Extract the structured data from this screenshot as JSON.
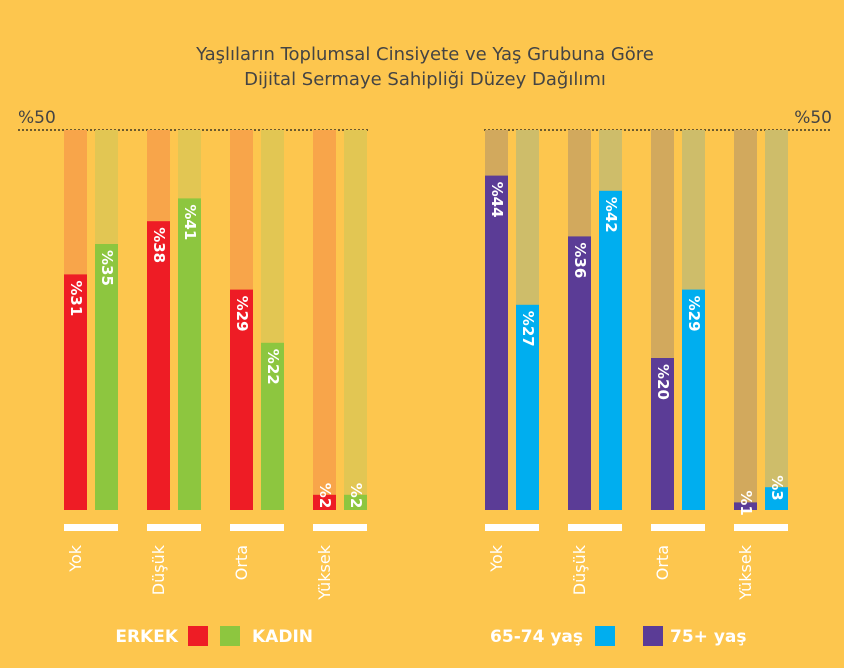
{
  "title_lines": [
    "Yaşlıların Toplumsal Cinsiyete ve Yaş Grubuna Göre",
    "Dijital Sermaye Sahipliği Düzey Dağılımı"
  ],
  "chart_data": [
    {
      "type": "bar",
      "categories": [
        "Yok",
        "Düşük",
        "Orta",
        "Yüksek"
      ],
      "series": [
        {
          "name": "ERKEK",
          "color": "#ee1c25",
          "values": [
            31,
            38,
            29,
            2
          ],
          "value_labels": [
            "%31",
            "%38",
            "%29",
            "%2"
          ]
        },
        {
          "name": "KADIN",
          "color": "#8dc63f",
          "values": [
            35,
            41,
            22,
            2
          ],
          "value_labels": [
            "%35",
            "%41",
            "%22",
            "%2"
          ]
        }
      ],
      "ylim": [
        0,
        50
      ],
      "yticks": [
        {
          "value": 50,
          "label": "%50"
        }
      ]
    },
    {
      "type": "bar",
      "categories": [
        "Yok",
        "Düşük",
        "Orta",
        "Yüksek"
      ],
      "series": [
        {
          "name": "75+ yaş",
          "color": "#5b3c96",
          "values": [
            44,
            36,
            20,
            1
          ],
          "value_labels": [
            "%44",
            "%36",
            "%20",
            "%1"
          ]
        },
        {
          "name": "65-74 yaş",
          "color": "#00aeef",
          "values": [
            27,
            42,
            29,
            3
          ],
          "value_labels": [
            "%27",
            "%42",
            "%29",
            "%3"
          ]
        }
      ],
      "ylim": [
        0,
        50
      ],
      "yticks": [
        {
          "value": 50,
          "label": "%50"
        }
      ]
    }
  ]
}
